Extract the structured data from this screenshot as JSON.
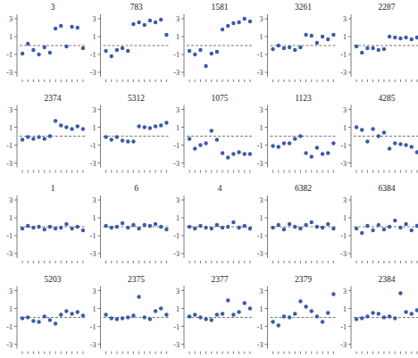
{
  "chart_data": [
    {
      "type": "scatter",
      "title": "3",
      "x": [
        1,
        2,
        3,
        4,
        5,
        6,
        7,
        8,
        9,
        10,
        11,
        12
      ],
      "values": [
        -0.9,
        0.2,
        -0.5,
        -1.0,
        -0.2,
        -0.8,
        1.9,
        2.2,
        -0.1,
        2.1,
        2.0,
        -0.3
      ],
      "xlim": [
        0.5,
        12.5
      ],
      "ylim": [
        -3.5,
        3.5
      ],
      "xticks": [
        1,
        2,
        3,
        4,
        5,
        6,
        7,
        8,
        9,
        10,
        11,
        12
      ],
      "yticks": [
        3,
        1,
        -1,
        -3
      ],
      "tick_labels": "y",
      "reference_line": 0,
      "color": "#3a5ba8",
      "marker": "circle"
    },
    {
      "type": "scatter",
      "title": "783",
      "x": [
        1,
        2,
        3,
        4,
        5,
        6,
        7,
        8,
        9,
        10,
        11,
        12
      ],
      "values": [
        -0.6,
        -1.2,
        -0.5,
        -0.3,
        -0.6,
        2.4,
        2.6,
        2.3,
        2.8,
        2.6,
        2.9,
        1.2
      ],
      "xlim": [
        0.5,
        12.5
      ],
      "ylim": [
        -3.5,
        3.5
      ],
      "xticks": [
        1,
        2,
        3,
        4,
        5,
        6,
        7,
        8,
        9,
        10,
        11,
        12
      ],
      "yticks": [
        3,
        1,
        -1,
        -3
      ],
      "tick_labels": "y",
      "reference_line": 0,
      "color": "#3a5ba8",
      "marker": "circle"
    },
    {
      "type": "scatter",
      "title": "1581",
      "x": [
        1,
        2,
        3,
        4,
        5,
        6,
        7,
        8,
        9,
        10,
        11,
        12
      ],
      "values": [
        -0.6,
        -1.0,
        -0.5,
        -2.3,
        -0.9,
        -0.7,
        1.8,
        2.2,
        2.5,
        2.6,
        3.0,
        2.7
      ],
      "xlim": [
        0.5,
        12.5
      ],
      "ylim": [
        -3.5,
        3.5
      ],
      "xticks": [
        1,
        2,
        3,
        4,
        5,
        6,
        7,
        8,
        9,
        10,
        11,
        12
      ],
      "yticks": [
        3,
        1,
        -1,
        -3
      ],
      "tick_labels": "y",
      "reference_line": 0,
      "color": "#3a5ba8",
      "marker": "circle"
    },
    {
      "type": "scatter",
      "title": "3261",
      "x": [
        1,
        2,
        3,
        4,
        5,
        6,
        7,
        8,
        9,
        10,
        11,
        12
      ],
      "values": [
        -0.4,
        0.0,
        -0.3,
        -0.2,
        -0.5,
        -0.2,
        1.2,
        1.1,
        0.3,
        1.0,
        0.7,
        1.2
      ],
      "xlim": [
        0.5,
        12.5
      ],
      "ylim": [
        -3.5,
        3.5
      ],
      "xticks": [
        1,
        2,
        3,
        4,
        5,
        6,
        7,
        8,
        9,
        10,
        11,
        12
      ],
      "yticks": [
        3,
        1,
        -1,
        -3
      ],
      "tick_labels": "y",
      "reference_line": 0,
      "color": "#3a5ba8",
      "marker": "circle"
    },
    {
      "type": "scatter",
      "title": "2287",
      "x": [
        1,
        2,
        3,
        4,
        5,
        6,
        7,
        8,
        9,
        10,
        11,
        12
      ],
      "values": [
        -0.1,
        -0.8,
        -0.3,
        -0.3,
        -0.5,
        -0.4,
        1.0,
        0.9,
        0.8,
        0.9,
        0.7,
        0.9
      ],
      "xlim": [
        0.5,
        12.5
      ],
      "ylim": [
        -3.5,
        3.5
      ],
      "xticks": [
        1,
        2,
        3,
        4,
        5,
        6,
        7,
        8,
        9,
        10,
        11,
        12
      ],
      "yticks": [
        3,
        1,
        -1,
        -3
      ],
      "tick_labels": "y",
      "reference_line": 0,
      "color": "#3a5ba8",
      "marker": "circle"
    },
    {
      "type": "scatter",
      "title": "2374",
      "x": [
        1,
        2,
        3,
        4,
        5,
        6,
        7,
        8,
        9,
        10,
        11,
        12
      ],
      "values": [
        -0.4,
        -0.1,
        -0.3,
        -0.1,
        -0.3,
        0.0,
        1.7,
        1.2,
        1.0,
        0.8,
        1.1,
        0.8
      ],
      "xlim": [
        0.5,
        12.5
      ],
      "ylim": [
        -3.5,
        3.5
      ],
      "xticks": [
        1,
        2,
        3,
        4,
        5,
        6,
        7,
        8,
        9,
        10,
        11,
        12
      ],
      "yticks": [
        3,
        1,
        -1,
        -3
      ],
      "tick_labels": "y",
      "reference_line": 0,
      "color": "#3a5ba8",
      "marker": "circle"
    },
    {
      "type": "scatter",
      "title": "5312",
      "x": [
        1,
        2,
        3,
        4,
        5,
        6,
        7,
        8,
        9,
        10,
        11,
        12
      ],
      "values": [
        -0.1,
        -0.4,
        -0.1,
        -0.5,
        -0.6,
        -0.6,
        1.1,
        1.0,
        0.9,
        1.1,
        1.2,
        1.5
      ],
      "xlim": [
        0.5,
        12.5
      ],
      "ylim": [
        -3.5,
        3.5
      ],
      "xticks": [
        1,
        2,
        3,
        4,
        5,
        6,
        7,
        8,
        9,
        10,
        11,
        12
      ],
      "yticks": [
        3,
        1,
        -1,
        -3
      ],
      "tick_labels": "y",
      "reference_line": 0,
      "color": "#3a5ba8",
      "marker": "circle"
    },
    {
      "type": "scatter",
      "title": "1075",
      "x": [
        1,
        2,
        3,
        4,
        5,
        6,
        7,
        8,
        9,
        10,
        11,
        12
      ],
      "values": [
        -0.3,
        -1.4,
        -1.0,
        -0.8,
        0.6,
        -0.4,
        -1.9,
        -2.4,
        -2.0,
        -1.8,
        -2.0,
        -2.0
      ],
      "xlim": [
        0.5,
        12.5
      ],
      "ylim": [
        -3.5,
        3.5
      ],
      "xticks": [
        1,
        2,
        3,
        4,
        5,
        6,
        7,
        8,
        9,
        10,
        11,
        12
      ],
      "yticks": [
        3,
        1,
        -1,
        -3
      ],
      "tick_labels": "y",
      "reference_line": 0,
      "color": "#3a5ba8",
      "marker": "circle"
    },
    {
      "type": "scatter",
      "title": "1123",
      "x": [
        1,
        2,
        3,
        4,
        5,
        6,
        7,
        8,
        9,
        10,
        11,
        12
      ],
      "values": [
        -1.1,
        -1.2,
        -0.8,
        -0.8,
        -0.3,
        0.0,
        -1.9,
        -2.3,
        -1.3,
        -2.0,
        -1.9,
        -0.8
      ],
      "xlim": [
        0.5,
        12.5
      ],
      "ylim": [
        -3.5,
        3.5
      ],
      "xticks": [
        1,
        2,
        3,
        4,
        5,
        6,
        7,
        8,
        9,
        10,
        11,
        12
      ],
      "yticks": [
        3,
        1,
        -1,
        -3
      ],
      "tick_labels": "y",
      "reference_line": 0,
      "color": "#3a5ba8",
      "marker": "circle"
    },
    {
      "type": "scatter",
      "title": "4285",
      "x": [
        1,
        2,
        3,
        4,
        5,
        6,
        7,
        8,
        9,
        10,
        11,
        12
      ],
      "values": [
        1.0,
        0.7,
        -0.6,
        0.8,
        0.0,
        0.4,
        -1.4,
        -0.8,
        -0.9,
        -1.0,
        -1.2,
        -1.8
      ],
      "xlim": [
        0.5,
        12.5
      ],
      "ylim": [
        -3.5,
        3.5
      ],
      "xticks": [
        1,
        2,
        3,
        4,
        5,
        6,
        7,
        8,
        9,
        10,
        11,
        12
      ],
      "yticks": [
        3,
        1,
        -1,
        -3
      ],
      "tick_labels": "y",
      "reference_line": 0,
      "color": "#3a5ba8",
      "marker": "circle"
    },
    {
      "type": "scatter",
      "title": "1",
      "x": [
        1,
        2,
        3,
        4,
        5,
        6,
        7,
        8,
        9,
        10,
        11,
        12
      ],
      "values": [
        -0.2,
        0.1,
        -0.1,
        0.0,
        -0.3,
        0.0,
        -0.2,
        -0.1,
        0.3,
        -0.2,
        0.0,
        -0.4
      ],
      "xlim": [
        0.5,
        12.5
      ],
      "ylim": [
        -3.5,
        3.5
      ],
      "xticks": [
        1,
        2,
        3,
        4,
        5,
        6,
        7,
        8,
        9,
        10,
        11,
        12
      ],
      "yticks": [
        3,
        1,
        -1,
        -3
      ],
      "tick_labels": "y",
      "reference_line": 0,
      "color": "#3a5ba8",
      "marker": "circle"
    },
    {
      "type": "scatter",
      "title": "6",
      "x": [
        1,
        2,
        3,
        4,
        5,
        6,
        7,
        8,
        9,
        10,
        11,
        12
      ],
      "values": [
        0.1,
        -0.1,
        0.0,
        0.4,
        -0.1,
        0.2,
        -0.2,
        0.2,
        0.1,
        0.3,
        0.0,
        -0.3
      ],
      "xlim": [
        0.5,
        12.5
      ],
      "ylim": [
        -3.5,
        3.5
      ],
      "xticks": [
        1,
        2,
        3,
        4,
        5,
        6,
        7,
        8,
        9,
        10,
        11,
        12
      ],
      "yticks": [
        3,
        1,
        -1,
        -3
      ],
      "tick_labels": "y",
      "reference_line": 0,
      "color": "#3a5ba8",
      "marker": "circle"
    },
    {
      "type": "scatter",
      "title": "4",
      "x": [
        1,
        2,
        3,
        4,
        5,
        6,
        7,
        8,
        9,
        10,
        11,
        12
      ],
      "values": [
        0.0,
        -0.2,
        0.1,
        -0.1,
        -0.2,
        0.2,
        -0.1,
        0.0,
        0.5,
        -0.1,
        0.1,
        -0.2
      ],
      "xlim": [
        0.5,
        12.5
      ],
      "ylim": [
        -3.5,
        3.5
      ],
      "xticks": [
        1,
        2,
        3,
        4,
        5,
        6,
        7,
        8,
        9,
        10,
        11,
        12
      ],
      "yticks": [
        3,
        1,
        -1,
        -3
      ],
      "tick_labels": "y",
      "reference_line": 0,
      "color": "#3a5ba8",
      "marker": "circle"
    },
    {
      "type": "scatter",
      "title": "6382",
      "x": [
        1,
        2,
        3,
        4,
        5,
        6,
        7,
        8,
        9,
        10,
        11,
        12
      ],
      "values": [
        -0.1,
        0.2,
        -0.3,
        0.3,
        0.0,
        -0.2,
        0.2,
        0.5,
        0.0,
        -0.1,
        0.3,
        -0.2
      ],
      "xlim": [
        0.5,
        12.5
      ],
      "ylim": [
        -3.5,
        3.5
      ],
      "xticks": [
        1,
        2,
        3,
        4,
        5,
        6,
        7,
        8,
        9,
        10,
        11,
        12
      ],
      "yticks": [
        3,
        1,
        -1,
        -3
      ],
      "tick_labels": "y",
      "reference_line": 0,
      "color": "#3a5ba8",
      "marker": "circle"
    },
    {
      "type": "scatter",
      "title": "6384",
      "x": [
        1,
        2,
        3,
        4,
        5,
        6,
        7,
        8,
        9,
        10,
        11,
        12
      ],
      "values": [
        -0.2,
        -0.7,
        0.1,
        -0.4,
        0.2,
        -0.3,
        0.0,
        0.7,
        -0.1,
        0.3,
        -0.4,
        0.1
      ],
      "xlim": [
        0.5,
        12.5
      ],
      "ylim": [
        -3.5,
        3.5
      ],
      "xticks": [
        1,
        2,
        3,
        4,
        5,
        6,
        7,
        8,
        9,
        10,
        11,
        12
      ],
      "yticks": [
        3,
        1,
        -1,
        -3
      ],
      "tick_labels": "y",
      "reference_line": 0,
      "color": "#3a5ba8",
      "marker": "circle"
    },
    {
      "type": "scatter",
      "title": "5203",
      "x": [
        1,
        2,
        3,
        4,
        5,
        6,
        7,
        8,
        9,
        10,
        11,
        12
      ],
      "values": [
        -0.1,
        0.0,
        -0.4,
        -0.5,
        0.1,
        -0.3,
        -0.7,
        0.3,
        0.7,
        0.4,
        0.6,
        0.2
      ],
      "xlim": [
        0.5,
        12.5
      ],
      "ylim": [
        -3.5,
        3.5
      ],
      "xticks": [
        1,
        2,
        3,
        4,
        5,
        6,
        7,
        8,
        9,
        10,
        11,
        12
      ],
      "yticks": [
        3,
        1,
        -1,
        -3
      ],
      "tick_labels": "y",
      "reference_line": 0,
      "color": "#3a5ba8",
      "marker": "circle"
    },
    {
      "type": "scatter",
      "title": "2375",
      "x": [
        1,
        2,
        3,
        4,
        5,
        6,
        7,
        8,
        9,
        10,
        11,
        12
      ],
      "values": [
        0.3,
        -0.1,
        -0.2,
        -0.1,
        0.0,
        0.2,
        2.3,
        0.0,
        -0.2,
        0.7,
        1.0,
        0.3
      ],
      "xlim": [
        0.5,
        12.5
      ],
      "ylim": [
        -3.5,
        3.5
      ],
      "xticks": [
        1,
        2,
        3,
        4,
        5,
        6,
        7,
        8,
        9,
        10,
        11,
        12
      ],
      "yticks": [
        3,
        1,
        -1,
        -3
      ],
      "tick_labels": "y",
      "reference_line": 0,
      "color": "#3a5ba8",
      "marker": "circle"
    },
    {
      "type": "scatter",
      "title": "2377",
      "x": [
        1,
        2,
        3,
        4,
        5,
        6,
        7,
        8,
        9,
        10,
        11,
        12
      ],
      "values": [
        0.1,
        0.3,
        0.0,
        -0.2,
        -0.3,
        0.3,
        0.4,
        1.9,
        0.3,
        0.6,
        1.6,
        1.0
      ],
      "xlim": [
        0.5,
        12.5
      ],
      "ylim": [
        -3.5,
        3.5
      ],
      "xticks": [
        1,
        2,
        3,
        4,
        5,
        6,
        7,
        8,
        9,
        10,
        11,
        12
      ],
      "yticks": [
        3,
        1,
        -1,
        -3
      ],
      "tick_labels": "y",
      "reference_line": 0,
      "color": "#3a5ba8",
      "marker": "circle"
    },
    {
      "type": "scatter",
      "title": "2379",
      "x": [
        1,
        2,
        3,
        4,
        5,
        6,
        7,
        8,
        9,
        10,
        11,
        12
      ],
      "values": [
        -0.5,
        -0.9,
        0.1,
        0.0,
        0.4,
        1.8,
        1.2,
        0.7,
        0.1,
        -0.5,
        0.5,
        2.6
      ],
      "xlim": [
        0.5,
        12.5
      ],
      "ylim": [
        -3.5,
        3.5
      ],
      "xticks": [
        1,
        2,
        3,
        4,
        5,
        6,
        7,
        8,
        9,
        10,
        11,
        12
      ],
      "yticks": [
        3,
        1,
        -1,
        -3
      ],
      "tick_labels": "y",
      "reference_line": 0,
      "color": "#3a5ba8",
      "marker": "circle"
    },
    {
      "type": "scatter",
      "title": "2384",
      "x": [
        1,
        2,
        3,
        4,
        5,
        6,
        7,
        8,
        9,
        10,
        11,
        12
      ],
      "values": [
        -0.2,
        -0.1,
        0.1,
        0.5,
        0.4,
        0.0,
        0.1,
        -0.1,
        2.7,
        0.6,
        0.4,
        0.8
      ],
      "xlim": [
        0.5,
        12.5
      ],
      "ylim": [
        -3.5,
        3.5
      ],
      "xticks": [
        1,
        2,
        3,
        4,
        5,
        6,
        7,
        8,
        9,
        10,
        11,
        12
      ],
      "yticks": [
        3,
        1,
        -1,
        -3
      ],
      "tick_labels": "y",
      "reference_line": 0,
      "color": "#3a5ba8",
      "marker": "circle"
    }
  ]
}
